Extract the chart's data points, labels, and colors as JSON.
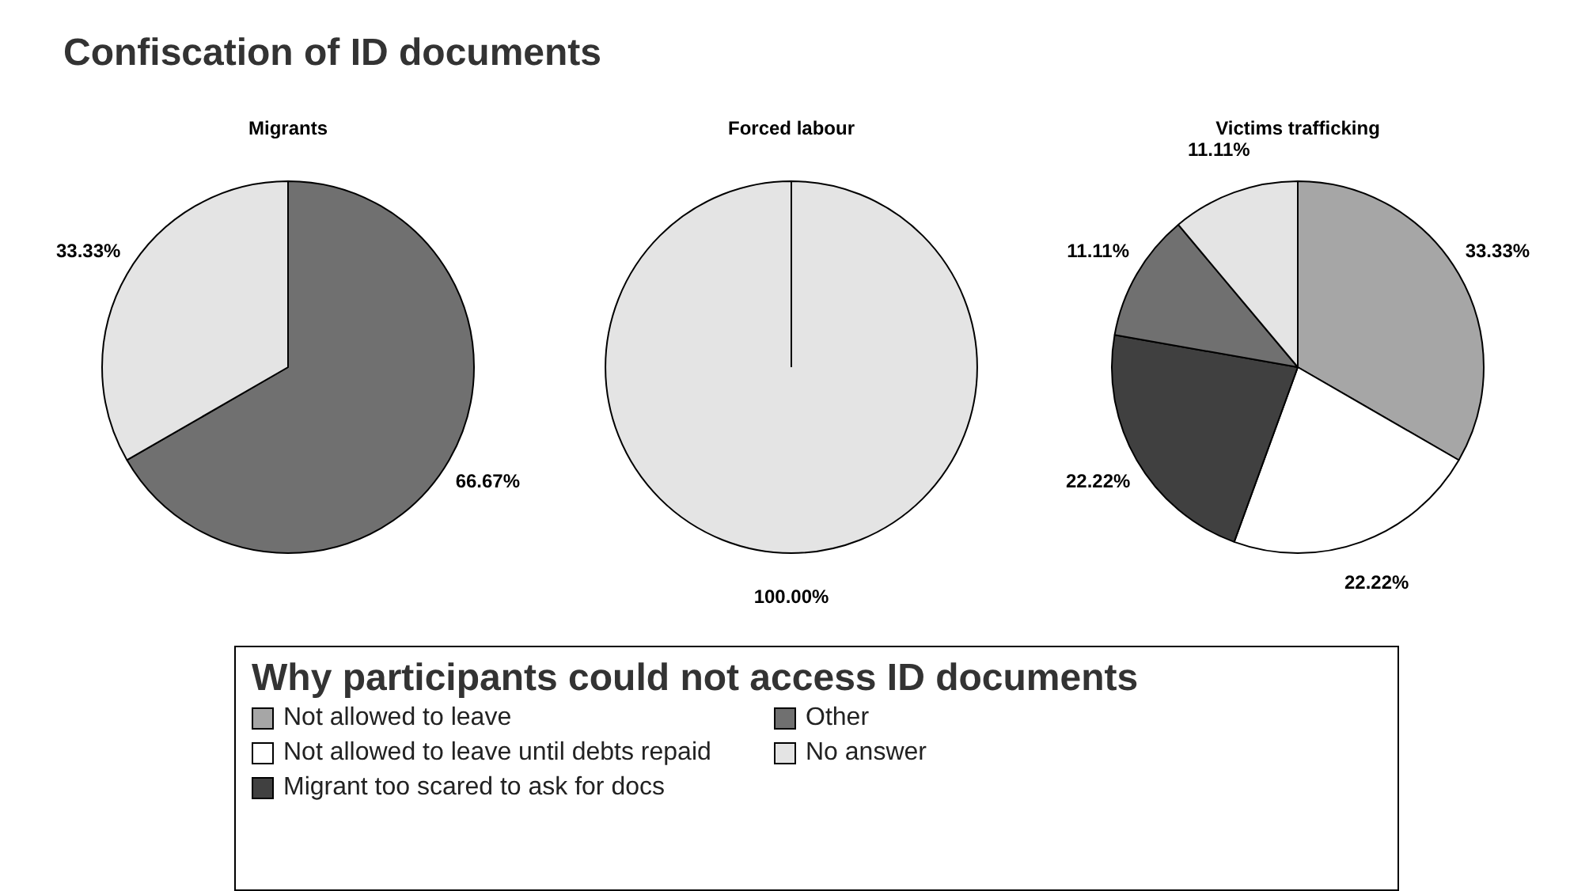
{
  "chart_data": [
    {
      "type": "pie",
      "title": "Confiscation of ID documents",
      "subtitle": "Migrants",
      "categories": [
        null,
        null
      ],
      "values": [
        66.67,
        33.33
      ],
      "colors": [
        "#707070",
        "#e4e4e4"
      ],
      "value_labels": [
        "66.67%",
        "33.33%"
      ]
    },
    {
      "type": "pie",
      "subtitle": "Forced labour",
      "categories": [
        null
      ],
      "values": [
        100
      ],
      "colors": [
        "#e4e4e4"
      ],
      "value_labels": [
        "100.00%"
      ]
    },
    {
      "type": "pie",
      "subtitle": "Victims trafficking",
      "legend_title": "Why participants could not access ID documents",
      "legend": "bottom",
      "categories": [
        "Not allowed to leave",
        "Not allowed to leave until debts repaid",
        "Migrant too scared to ask for docs",
        "Other",
        "No answer"
      ],
      "values": [
        33.33,
        22.22,
        22.22,
        11.11,
        11.11
      ],
      "colors": [
        "#a6a6a6",
        "#ffffff",
        "#404040",
        "#707070",
        "#e4e4e4"
      ],
      "value_labels": [
        "33.33%",
        "22.22%",
        "22.22%",
        "11.11%",
        "11.11%"
      ]
    }
  ]
}
